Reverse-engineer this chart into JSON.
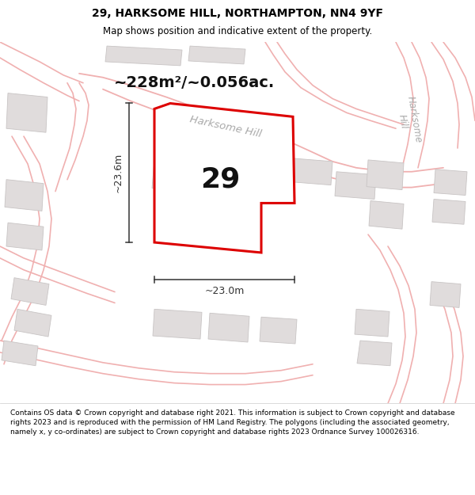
{
  "title_line1": "29, HARKSOME HILL, NORTHAMPTON, NN4 9YF",
  "title_line2": "Map shows position and indicative extent of the property.",
  "area_label": "~228m²/~0.056ac.",
  "street_label": "Harksome Hill",
  "street_label2": "Harksome\nHill",
  "property_number": "29",
  "dim_width": "~23.0m",
  "dim_height": "~23.6m",
  "footer_text": "Contains OS data © Crown copyright and database right 2021. This information is subject to Crown copyright and database rights 2023 and is reproduced with the permission of HM Land Registry. The polygons (including the associated geometry, namely x, y co-ordinates) are subject to Crown copyright and database rights 2023 Ordnance Survey 100026316.",
  "bg_color": "#ffffff",
  "map_bg": "#ffffff",
  "property_fill": "#ffffff",
  "property_edge": "#dd0000",
  "road_color": "#f0b0b0",
  "road_fill": "#f7f0f0",
  "building_fill": "#e0dcdc",
  "building_edge": "#c8c4c4",
  "title_bg": "#ffffff",
  "footer_bg": "#ffffff",
  "street_color": "#aaaaaa",
  "dim_color": "#333333"
}
